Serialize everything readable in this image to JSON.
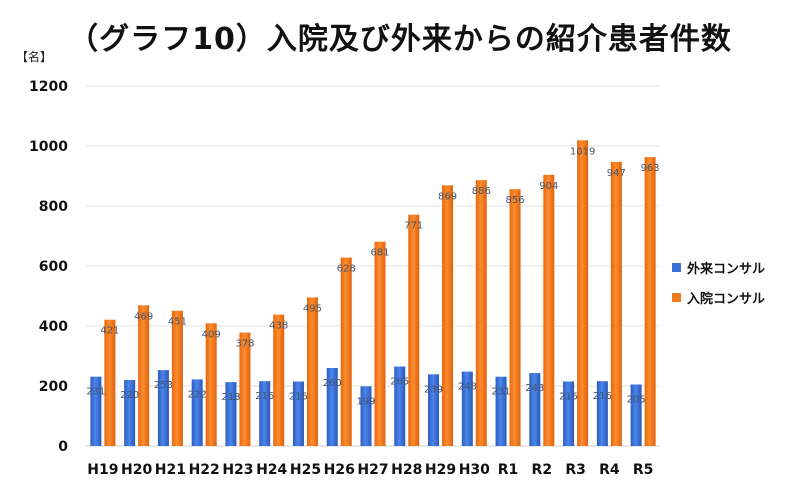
{
  "chart_data": {
    "type": "bar",
    "title": "（グラフ10）入院及び外来からの紹介患者件数",
    "unit_label": "【名】",
    "categories": [
      "H19",
      "H20",
      "H21",
      "H22",
      "H23",
      "H24",
      "H25",
      "H26",
      "H27",
      "H28",
      "H29",
      "H30",
      "R1",
      "R2",
      "R3",
      "R4",
      "R5"
    ],
    "series": [
      {
        "name": "外来コンサル",
        "color": "#3a6fd8",
        "values": [
          231,
          220,
          253,
          222,
          213,
          216,
          215,
          260,
          199,
          265,
          239,
          248,
          231,
          243,
          215,
          216,
          205
        ]
      },
      {
        "name": "入院コンサル",
        "color": "#f07a1e",
        "values": [
          421,
          469,
          451,
          409,
          378,
          438,
          495,
          628,
          681,
          771,
          869,
          886,
          856,
          904,
          1019,
          947,
          963
        ]
      }
    ],
    "ylim": [
      0,
      1200
    ],
    "yticks": [
      0,
      200,
      400,
      600,
      800,
      1000,
      1200
    ],
    "grid": true,
    "legend_position": "right"
  }
}
